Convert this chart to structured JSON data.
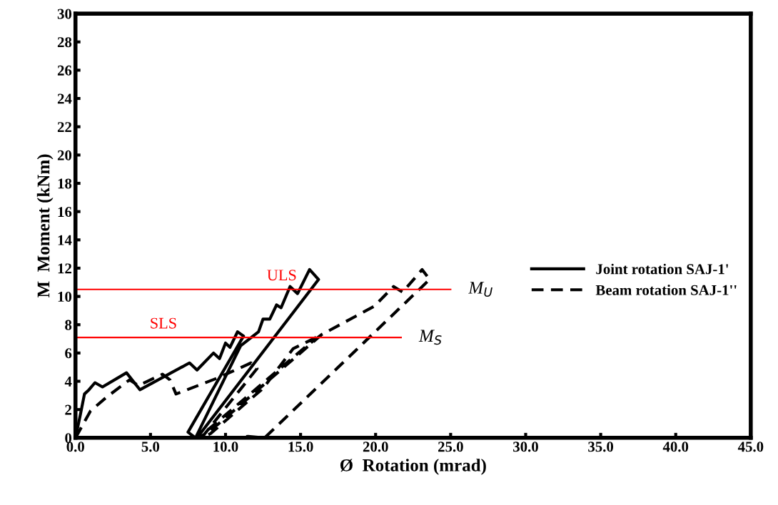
{
  "chart_data": {
    "type": "line",
    "xlabel": "Ø  Rotation (mrad)",
    "ylabel": "M  Moment (kNm)",
    "xlim": [
      0,
      45
    ],
    "ylim": [
      0,
      30
    ],
    "xticks": [
      {
        "value": 0,
        "label": "0.0"
      },
      {
        "value": 5,
        "label": "5.0"
      },
      {
        "value": 10,
        "label": "10.0"
      },
      {
        "value": 15,
        "label": "15.0"
      },
      {
        "value": 20,
        "label": "20.0"
      },
      {
        "value": 25,
        "label": "25.0"
      },
      {
        "value": 30,
        "label": "30.0"
      },
      {
        "value": 35,
        "label": "35.0"
      },
      {
        "value": 40,
        "label": "40.0"
      },
      {
        "value": 45,
        "label": "45.0"
      }
    ],
    "yticks": [
      0,
      2,
      4,
      6,
      8,
      10,
      12,
      14,
      16,
      18,
      20,
      22,
      24,
      26,
      28,
      30
    ],
    "grid": false,
    "legend": "right",
    "marker": "none",
    "series": [
      {
        "name": "Joint rotation SAJ-1'",
        "color": "#000000",
        "line_style": "solid",
        "x": [
          0,
          0.3,
          0.6,
          0.9,
          1.3,
          1.8,
          3.4,
          4.3,
          7.6,
          8.1,
          9.2,
          9.6,
          10.0,
          10.3,
          10.8,
          11.2,
          7.5,
          8.0,
          11.0,
          12.2,
          12.5,
          12.95,
          13.4,
          13.7,
          14.3,
          14.8,
          15.6,
          16.2,
          8.1
        ],
        "values": [
          0,
          1.5,
          3.1,
          3.4,
          3.9,
          3.6,
          4.6,
          3.4,
          5.3,
          4.8,
          6.0,
          5.6,
          6.7,
          6.4,
          7.5,
          7.2,
          0.4,
          0,
          6.5,
          7.5,
          8.4,
          8.4,
          9.4,
          9.2,
          10.7,
          10.2,
          11.9,
          11.2,
          0
        ]
      },
      {
        "name": "Beam rotation SAJ-1''",
        "color": "#000000",
        "line_style": "dashed",
        "x": [
          0,
          0.24,
          1.0,
          2.1,
          3.6,
          4.2,
          5.8,
          6.3,
          6.7,
          9.4,
          11.7,
          12.1,
          8.4,
          9.0,
          12.5,
          14.5,
          16.4,
          15.4,
          8.2,
          9.0,
          16.4,
          19.9,
          21.2,
          21.8,
          23.1,
          23.6,
          12.6,
          11.5,
          10.5
        ],
        "values": [
          0,
          0.45,
          1.9,
          2.9,
          4.1,
          3.7,
          4.5,
          4.1,
          3.1,
          4.2,
          5.3,
          4.9,
          0,
          0.3,
          3.5,
          6.3,
          7.3,
          6.5,
          0,
          0.5,
          7.3,
          9.3,
          10.7,
          10.3,
          11.9,
          11.2,
          0,
          0.1,
          0
        ]
      }
    ],
    "ref_lines": [
      {
        "axis": "y",
        "value": 10.5,
        "label": "ULS",
        "color": "#ff0000",
        "line_style": "solid"
      },
      {
        "axis": "y",
        "value": 7.1,
        "label": "SLS",
        "color": "#ff0000",
        "line_style": "solid"
      }
    ],
    "annotations": [
      {
        "text": "M$_{U}$",
        "x": 25,
        "y": 10.5
      },
      {
        "text": "M$_{S}$",
        "x": 21.7,
        "y": 7.1
      }
    ]
  }
}
